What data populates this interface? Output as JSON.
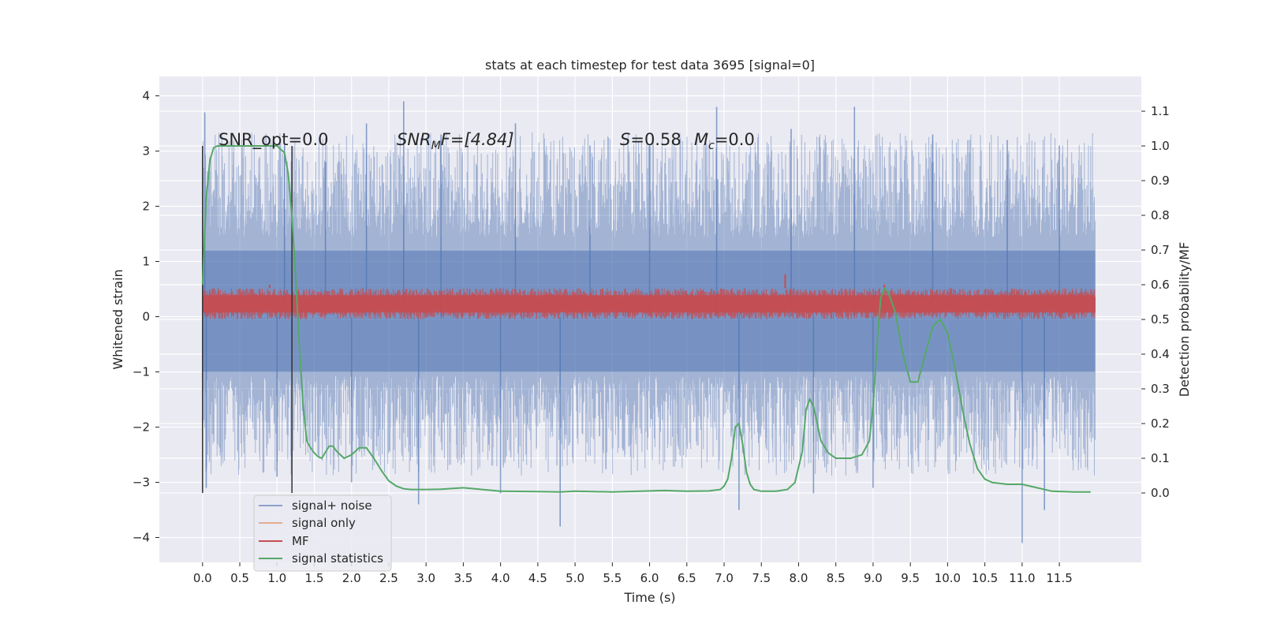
{
  "chart_data": {
    "type": "line",
    "title": "stats at each timestep for test data 3695 [signal=0]",
    "xlabel": "Time (s)",
    "ylabel_left": "Whitened strain",
    "ylabel_right": "Detection probability/MF",
    "xlim": [
      -0.58,
      12.6
    ],
    "ylim_left": [
      -4.45,
      4.35
    ],
    "ylim_right": [
      -0.2,
      1.2
    ],
    "xticks": [
      0.0,
      0.5,
      1.0,
      1.5,
      2.0,
      2.5,
      3.0,
      3.5,
      4.0,
      4.5,
      5.0,
      5.5,
      6.0,
      6.5,
      7.0,
      7.5,
      8.0,
      8.5,
      9.0,
      9.5,
      10.0,
      10.5,
      11.0,
      11.5
    ],
    "xtick_labels": [
      "0.0",
      "0.5",
      "1.0",
      "1.5",
      "2.0",
      "2.5",
      "3.0",
      "3.5",
      "4.0",
      "4.5",
      "5.0",
      "5.5",
      "6.0",
      "6.5",
      "7.0",
      "7.5",
      "8.0",
      "8.5",
      "9.0",
      "9.5",
      "10.0",
      "10.5",
      "11.0",
      "11.5"
    ],
    "yticks_left": [
      -4,
      -3,
      -2,
      -1,
      0,
      1,
      2,
      3,
      4
    ],
    "ytick_labels_left": [
      "−4",
      "−3",
      "−2",
      "−1",
      "0",
      "1",
      "2",
      "3",
      "4"
    ],
    "yticks_right": [
      0.0,
      0.1,
      0.2,
      0.3,
      0.4,
      0.5,
      0.6,
      0.7,
      0.8,
      0.9,
      1.0,
      1.1
    ],
    "ytick_labels_right": [
      "0.0",
      "0.1",
      "0.2",
      "0.3",
      "0.4",
      "0.5",
      "0.6",
      "0.7",
      "0.8",
      "0.9",
      "1.0",
      "1.1"
    ],
    "grid": true,
    "legend_position": "lower-left",
    "legend": [
      "signal+ noise",
      "signal only",
      "MF",
      "signal statistics"
    ],
    "colors": {
      "signal_noise": "#4c72b0",
      "signal_only": "#dd8452",
      "mf": "#c44e52",
      "signal_statistics": "#55a868",
      "vlines": "#333333",
      "background": "#eaeaf2"
    },
    "annotations": {
      "snr_opt": "SNR_opt=0.0",
      "snr_mf_prefix": "SNR",
      "snr_mf_sub": "M",
      "snr_mf_suffix": "F=[4.84]",
      "s_label": "S",
      "s_value": "=0.58",
      "mc_label": "M",
      "mc_sub": "c",
      "mc_value": "=0.0"
    },
    "vlines_x": [
      0.0,
      1.2
    ],
    "signal_noise_envelope": {
      "x": [
        0.0,
        1.0,
        2.0,
        3.0,
        4.0,
        5.0,
        6.0,
        7.0,
        8.0,
        9.0,
        10.0,
        11.0,
        11.98
      ],
      "upper_typical": [
        1.8,
        1.8,
        1.8,
        1.8,
        1.8,
        1.8,
        1.8,
        1.8,
        1.8,
        1.8,
        1.8,
        1.8,
        1.8
      ],
      "lower_typical": [
        -1.4,
        -1.4,
        -1.4,
        -1.4,
        -1.4,
        -1.4,
        -1.4,
        -1.4,
        -1.4,
        -1.4,
        -1.4,
        -1.4,
        -1.4
      ],
      "peaks": [
        {
          "x": 0.03,
          "y": 3.7
        },
        {
          "x": 0.05,
          "y": -3.1
        },
        {
          "x": 1.1,
          "y": 3.1
        },
        {
          "x": 1.0,
          "y": -2.9
        },
        {
          "x": 1.65,
          "y": 2.8
        },
        {
          "x": 2.0,
          "y": -3.0
        },
        {
          "x": 2.2,
          "y": 3.5
        },
        {
          "x": 2.7,
          "y": 3.9
        },
        {
          "x": 2.9,
          "y": -3.4
        },
        {
          "x": 3.2,
          "y": 3.3
        },
        {
          "x": 4.0,
          "y": -3.2
        },
        {
          "x": 4.2,
          "y": 3.5
        },
        {
          "x": 4.8,
          "y": -3.8
        },
        {
          "x": 5.2,
          "y": 3.1
        },
        {
          "x": 6.0,
          "y": 3.1
        },
        {
          "x": 6.9,
          "y": 3.8
        },
        {
          "x": 7.2,
          "y": -3.5
        },
        {
          "x": 7.9,
          "y": 3.4
        },
        {
          "x": 8.2,
          "y": -3.2
        },
        {
          "x": 8.75,
          "y": 3.8
        },
        {
          "x": 9.0,
          "y": -3.1
        },
        {
          "x": 9.8,
          "y": 3.3
        },
        {
          "x": 10.8,
          "y": 3.2
        },
        {
          "x": 11.0,
          "y": -4.1
        },
        {
          "x": 11.3,
          "y": -3.5
        },
        {
          "x": 11.5,
          "y": 3.1
        }
      ]
    },
    "mf_band": {
      "x": [
        0.0,
        11.98
      ],
      "lower": 0.5,
      "upper": 0.59,
      "spikes": [
        {
          "x": 7.82,
          "y": 0.63
        },
        {
          "x": 9.15,
          "y": 0.6
        },
        {
          "x": 0.9,
          "y": 0.6
        }
      ]
    },
    "signal_statistics": {
      "x": [
        0.0,
        0.05,
        0.1,
        0.15,
        0.2,
        0.4,
        0.6,
        0.8,
        1.0,
        1.1,
        1.15,
        1.2,
        1.25,
        1.3,
        1.35,
        1.4,
        1.45,
        1.5,
        1.55,
        1.6,
        1.7,
        1.75,
        1.8,
        1.9,
        2.0,
        2.1,
        2.2,
        2.3,
        2.4,
        2.5,
        2.6,
        2.7,
        2.8,
        3.0,
        3.2,
        3.5,
        4.0,
        4.5,
        4.8,
        5.0,
        5.5,
        6.0,
        6.2,
        6.5,
        6.8,
        6.95,
        7.0,
        7.05,
        7.1,
        7.15,
        7.2,
        7.25,
        7.3,
        7.35,
        7.4,
        7.5,
        7.7,
        7.85,
        7.95,
        8.05,
        8.1,
        8.15,
        8.2,
        8.3,
        8.4,
        8.5,
        8.7,
        8.85,
        8.95,
        9.0,
        9.05,
        9.1,
        9.15,
        9.2,
        9.3,
        9.4,
        9.5,
        9.6,
        9.7,
        9.8,
        9.9,
        10.0,
        10.1,
        10.2,
        10.3,
        10.4,
        10.5,
        10.6,
        10.8,
        11.0,
        11.2,
        11.4,
        11.7,
        11.92
      ],
      "y": [
        0.6,
        0.85,
        0.96,
        0.995,
        1.0,
        1.0,
        1.0,
        1.0,
        1.0,
        0.98,
        0.92,
        0.8,
        0.62,
        0.42,
        0.25,
        0.15,
        0.13,
        0.115,
        0.105,
        0.1,
        0.135,
        0.135,
        0.12,
        0.1,
        0.11,
        0.13,
        0.13,
        0.1,
        0.065,
        0.035,
        0.02,
        0.012,
        0.01,
        0.01,
        0.011,
        0.015,
        0.005,
        0.004,
        0.003,
        0.005,
        0.003,
        0.006,
        0.007,
        0.005,
        0.006,
        0.01,
        0.02,
        0.04,
        0.1,
        0.19,
        0.2,
        0.14,
        0.06,
        0.025,
        0.01,
        0.005,
        0.005,
        0.01,
        0.03,
        0.12,
        0.24,
        0.27,
        0.25,
        0.15,
        0.115,
        0.1,
        0.1,
        0.11,
        0.15,
        0.25,
        0.42,
        0.56,
        0.59,
        0.58,
        0.52,
        0.4,
        0.32,
        0.32,
        0.4,
        0.48,
        0.5,
        0.46,
        0.36,
        0.24,
        0.14,
        0.07,
        0.04,
        0.03,
        0.025,
        0.025,
        0.015,
        0.005,
        0.003,
        0.003
      ]
    }
  }
}
